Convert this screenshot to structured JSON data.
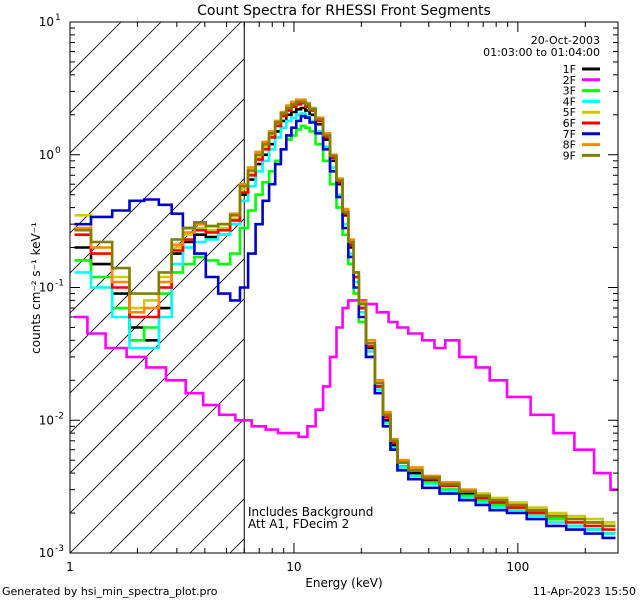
{
  "chart_data": {
    "type": "line",
    "title": "Count Spectra for RHESSI Front Segments",
    "xlabel": "Energy (keV)",
    "ylabel": "counts cm⁻² s⁻¹ keV⁻¹",
    "xscale": "log",
    "yscale": "log",
    "xlim": [
      1,
      280
    ],
    "ylim": [
      0.001,
      10
    ],
    "x_tick_labels": [
      {
        "value": 1,
        "label": "1"
      },
      {
        "value": 10,
        "label": "10"
      },
      {
        "value": 100,
        "label": "100"
      }
    ],
    "y_tick_labels": [
      {
        "value": 0.001,
        "mantissa": "10",
        "exponent": "-3"
      },
      {
        "value": 0.01,
        "mantissa": "10",
        "exponent": "-2"
      },
      {
        "value": 0.1,
        "mantissa": "10",
        "exponent": "-1"
      },
      {
        "value": 1,
        "mantissa": "10",
        "exponent": "0"
      },
      {
        "value": 10,
        "mantissa": "10",
        "exponent": "1"
      }
    ],
    "shaded_region": {
      "x_from": 1,
      "x_to": 6
    },
    "vertical_line_x": 6,
    "date_text": "20-Oct-2003",
    "time_range_text": "01:03:00 to 01:04:00",
    "annotations": [
      "Includes Background",
      "Att A1, FDecim  2"
    ],
    "footer_left": "Generated by hsi_min_spectra_plot.pro",
    "footer_right": "11-Apr-2023 15:50",
    "legend_position": "top-right",
    "series": [
      {
        "name": "1F",
        "color": "#000000",
        "x": [
          1.1,
          1.4,
          1.7,
          2.0,
          2.3,
          2.7,
          3.0,
          3.4,
          3.8,
          4.3,
          4.9,
          5.5,
          6.0,
          6.5,
          7,
          7.5,
          8,
          8.5,
          9,
          9.5,
          10,
          10.5,
          11,
          11.5,
          12,
          13,
          14,
          15,
          16,
          17,
          18,
          19,
          20,
          22,
          24,
          26,
          28,
          30,
          35,
          40,
          50,
          60,
          70,
          80,
          100,
          120,
          150,
          180,
          220,
          260
        ],
        "y": [
          0.2,
          0.15,
          0.09,
          0.05,
          0.04,
          0.07,
          0.18,
          0.22,
          0.25,
          0.24,
          0.25,
          0.3,
          0.5,
          0.65,
          0.85,
          1.0,
          1.2,
          1.5,
          1.8,
          2.0,
          2.1,
          2.2,
          2.25,
          2.15,
          2.0,
          1.7,
          1.3,
          0.9,
          0.6,
          0.35,
          0.2,
          0.12,
          0.07,
          0.035,
          0.018,
          0.01,
          0.0065,
          0.0045,
          0.004,
          0.0035,
          0.003,
          0.0028,
          0.0025,
          0.0023,
          0.0022,
          0.002,
          0.0018,
          0.0016,
          0.0015,
          0.0014
        ]
      },
      {
        "name": "2F",
        "color": "#ff00ff",
        "x": [
          1.1,
          1.3,
          1.6,
          2.0,
          2.4,
          3.0,
          3.6,
          4.3,
          5.0,
          6.0,
          7.0,
          8.0,
          9.0,
          10,
          11,
          12,
          13,
          14,
          15,
          16,
          17,
          18,
          20,
          22,
          25,
          28,
          30,
          35,
          40,
          45,
          50,
          60,
          70,
          80,
          100,
          130,
          160,
          200,
          240,
          280
        ],
        "y": [
          0.06,
          0.045,
          0.035,
          0.03,
          0.025,
          0.02,
          0.016,
          0.013,
          0.011,
          0.01,
          0.009,
          0.0085,
          0.008,
          0.008,
          0.0075,
          0.009,
          0.012,
          0.018,
          0.03,
          0.05,
          0.07,
          0.08,
          0.08,
          0.075,
          0.065,
          0.055,
          0.05,
          0.045,
          0.04,
          0.035,
          0.04,
          0.03,
          0.025,
          0.02,
          0.015,
          0.011,
          0.008,
          0.006,
          0.004,
          0.003
        ]
      },
      {
        "name": "3F",
        "color": "#00ff00",
        "x": [
          1.1,
          1.4,
          1.7,
          2.0,
          2.3,
          2.7,
          3.0,
          3.4,
          3.8,
          4.3,
          4.9,
          5.5,
          6.0,
          6.5,
          7,
          7.5,
          8,
          8.5,
          9,
          9.5,
          10,
          10.5,
          11,
          11.5,
          12,
          13,
          14,
          15,
          16,
          17,
          18,
          19,
          20,
          22,
          24,
          26,
          28,
          30,
          35,
          40,
          50,
          60,
          70,
          80,
          100,
          120,
          150,
          180,
          220,
          260
        ],
        "y": [
          0.16,
          0.12,
          0.07,
          0.04,
          0.05,
          0.09,
          0.13,
          0.15,
          0.17,
          0.16,
          0.15,
          0.18,
          0.28,
          0.38,
          0.5,
          0.62,
          0.75,
          0.9,
          1.1,
          1.3,
          1.4,
          1.55,
          1.65,
          1.6,
          1.5,
          1.2,
          0.9,
          0.6,
          0.4,
          0.25,
          0.15,
          0.09,
          0.055,
          0.03,
          0.016,
          0.009,
          0.006,
          0.0045,
          0.0038,
          0.0034,
          0.003,
          0.0027,
          0.0025,
          0.0023,
          0.0021,
          0.002,
          0.0018,
          0.0016,
          0.0015,
          0.0014
        ]
      },
      {
        "name": "4F",
        "color": "#00ffff",
        "x": [
          1.1,
          1.4,
          1.7,
          2.0,
          2.3,
          2.7,
          3.0,
          3.4,
          3.8,
          4.3,
          4.9,
          5.5,
          6.0,
          6.5,
          7,
          7.5,
          8,
          8.5,
          9,
          9.5,
          10,
          10.5,
          11,
          11.5,
          12,
          13,
          14,
          15,
          16,
          17,
          18,
          19,
          20,
          22,
          24,
          26,
          28,
          30,
          35,
          40,
          50,
          60,
          70,
          80,
          100,
          120,
          150,
          180,
          220,
          260
        ],
        "y": [
          0.13,
          0.1,
          0.06,
          0.035,
          0.035,
          0.06,
          0.15,
          0.2,
          0.22,
          0.23,
          0.25,
          0.3,
          0.45,
          0.58,
          0.75,
          0.9,
          1.1,
          1.35,
          1.6,
          1.8,
          1.9,
          2.0,
          2.05,
          1.95,
          1.8,
          1.5,
          1.15,
          0.8,
          0.5,
          0.3,
          0.18,
          0.11,
          0.065,
          0.033,
          0.017,
          0.0095,
          0.0062,
          0.0044,
          0.0038,
          0.0033,
          0.0029,
          0.0026,
          0.0024,
          0.0022,
          0.0021,
          0.0019,
          0.0017,
          0.0016,
          0.0015,
          0.0014
        ]
      },
      {
        "name": "5F",
        "color": "#cccc00",
        "x": [
          1.1,
          1.4,
          1.7,
          2.0,
          2.3,
          2.7,
          3.0,
          3.4,
          3.8,
          4.3,
          4.9,
          5.5,
          6.0,
          6.5,
          7,
          7.5,
          8,
          8.5,
          9,
          9.5,
          10,
          10.5,
          11,
          11.5,
          12,
          13,
          14,
          15,
          16,
          17,
          18,
          19,
          20,
          22,
          24,
          26,
          28,
          30,
          35,
          40,
          50,
          60,
          70,
          80,
          100,
          120,
          150,
          180,
          220,
          260
        ],
        "y": [
          0.35,
          0.22,
          0.12,
          0.07,
          0.08,
          0.12,
          0.2,
          0.25,
          0.28,
          0.27,
          0.28,
          0.33,
          0.55,
          0.72,
          0.95,
          1.15,
          1.4,
          1.7,
          2.0,
          2.2,
          2.3,
          2.4,
          2.45,
          2.35,
          2.2,
          1.85,
          1.4,
          0.95,
          0.65,
          0.38,
          0.22,
          0.13,
          0.075,
          0.038,
          0.019,
          0.011,
          0.007,
          0.005,
          0.0044,
          0.0038,
          0.0034,
          0.003,
          0.0028,
          0.0026,
          0.0024,
          0.0022,
          0.002,
          0.0019,
          0.0018,
          0.0017
        ]
      },
      {
        "name": "6F",
        "color": "#ff0000",
        "x": [
          1.1,
          1.4,
          1.7,
          2.0,
          2.3,
          2.7,
          3.0,
          3.4,
          3.8,
          4.3,
          4.9,
          5.5,
          6.0,
          6.5,
          7,
          7.5,
          8,
          8.5,
          9,
          9.5,
          10,
          10.5,
          11,
          11.5,
          12,
          13,
          14,
          15,
          16,
          17,
          18,
          19,
          20,
          22,
          24,
          26,
          28,
          30,
          35,
          40,
          50,
          60,
          70,
          80,
          100,
          120,
          150,
          180,
          220,
          260
        ],
        "y": [
          0.25,
          0.18,
          0.1,
          0.06,
          0.06,
          0.1,
          0.19,
          0.23,
          0.27,
          0.26,
          0.27,
          0.32,
          0.52,
          0.7,
          0.92,
          1.1,
          1.35,
          1.65,
          1.95,
          2.15,
          2.3,
          2.4,
          2.45,
          2.3,
          2.15,
          1.8,
          1.35,
          0.95,
          0.62,
          0.36,
          0.21,
          0.12,
          0.07,
          0.036,
          0.018,
          0.0105,
          0.0068,
          0.0048,
          0.0042,
          0.0036,
          0.0032,
          0.0029,
          0.0026,
          0.0024,
          0.0022,
          0.002,
          0.0019,
          0.0017,
          0.0016,
          0.0015
        ]
      },
      {
        "name": "7F",
        "color": "#0000cc",
        "x": [
          1.1,
          1.4,
          1.7,
          2.0,
          2.3,
          2.7,
          3.0,
          3.4,
          3.8,
          4.3,
          4.9,
          5.5,
          6.0,
          6.5,
          7,
          7.5,
          8,
          8.5,
          9,
          9.5,
          10,
          10.5,
          11,
          11.5,
          12,
          13,
          14,
          15,
          16,
          17,
          18,
          19,
          20,
          22,
          24,
          26,
          28,
          30,
          35,
          40,
          50,
          60,
          70,
          80,
          100,
          120,
          150,
          180,
          220,
          260
        ],
        "y": [
          0.3,
          0.34,
          0.38,
          0.45,
          0.46,
          0.42,
          0.36,
          0.28,
          0.18,
          0.12,
          0.09,
          0.08,
          0.1,
          0.18,
          0.3,
          0.45,
          0.6,
          0.85,
          1.1,
          1.4,
          1.6,
          1.8,
          1.95,
          1.9,
          1.75,
          1.45,
          1.1,
          0.75,
          0.48,
          0.28,
          0.17,
          0.1,
          0.06,
          0.03,
          0.016,
          0.009,
          0.006,
          0.0042,
          0.0036,
          0.0031,
          0.0028,
          0.0025,
          0.0023,
          0.0021,
          0.002,
          0.0018,
          0.0016,
          0.0015,
          0.0014,
          0.0013
        ]
      },
      {
        "name": "8F",
        "color": "#ff8800",
        "x": [
          1.1,
          1.4,
          1.7,
          2.0,
          2.3,
          2.7,
          3.0,
          3.4,
          3.8,
          4.3,
          4.9,
          5.5,
          6.0,
          6.5,
          7,
          7.5,
          8,
          8.5,
          9,
          9.5,
          10,
          10.5,
          11,
          11.5,
          12,
          13,
          14,
          15,
          16,
          17,
          18,
          19,
          20,
          22,
          24,
          26,
          28,
          30,
          35,
          40,
          50,
          60,
          70,
          80,
          100,
          120,
          150,
          180,
          220,
          260
        ],
        "y": [
          0.28,
          0.2,
          0.11,
          0.065,
          0.07,
          0.11,
          0.21,
          0.26,
          0.3,
          0.29,
          0.3,
          0.36,
          0.6,
          0.8,
          1.05,
          1.25,
          1.5,
          1.8,
          2.1,
          2.35,
          2.5,
          2.6,
          2.6,
          2.45,
          2.25,
          1.9,
          1.45,
          1.0,
          0.66,
          0.39,
          0.23,
          0.13,
          0.078,
          0.04,
          0.02,
          0.0115,
          0.0072,
          0.005,
          0.0044,
          0.0038,
          0.0034,
          0.003,
          0.0027,
          0.0025,
          0.0023,
          0.0021,
          0.0019,
          0.0018,
          0.0017,
          0.0016
        ]
      },
      {
        "name": "9F",
        "color": "#808000",
        "x": [
          1.1,
          1.4,
          1.7,
          2.0,
          2.3,
          2.7,
          3.0,
          3.4,
          3.8,
          4.3,
          4.9,
          5.5,
          6.0,
          6.5,
          7,
          7.5,
          8,
          8.5,
          9,
          9.5,
          10,
          10.5,
          11,
          11.5,
          12,
          13,
          14,
          15,
          16,
          17,
          18,
          19,
          20,
          22,
          24,
          26,
          28,
          30,
          35,
          40,
          50,
          60,
          70,
          80,
          100,
          120,
          150,
          180,
          220,
          260
        ],
        "y": [
          0.27,
          0.22,
          0.14,
          0.09,
          0.09,
          0.13,
          0.23,
          0.28,
          0.31,
          0.29,
          0.3,
          0.35,
          0.58,
          0.76,
          1.0,
          1.2,
          1.45,
          1.75,
          2.05,
          2.25,
          2.4,
          2.5,
          2.5,
          2.4,
          2.2,
          1.85,
          1.4,
          0.98,
          0.64,
          0.37,
          0.22,
          0.13,
          0.075,
          0.038,
          0.019,
          0.011,
          0.007,
          0.0048,
          0.0042,
          0.0037,
          0.0033,
          0.0029,
          0.0027,
          0.0025,
          0.0023,
          0.0021,
          0.0019,
          0.0018,
          0.0017,
          0.0016
        ]
      }
    ]
  }
}
